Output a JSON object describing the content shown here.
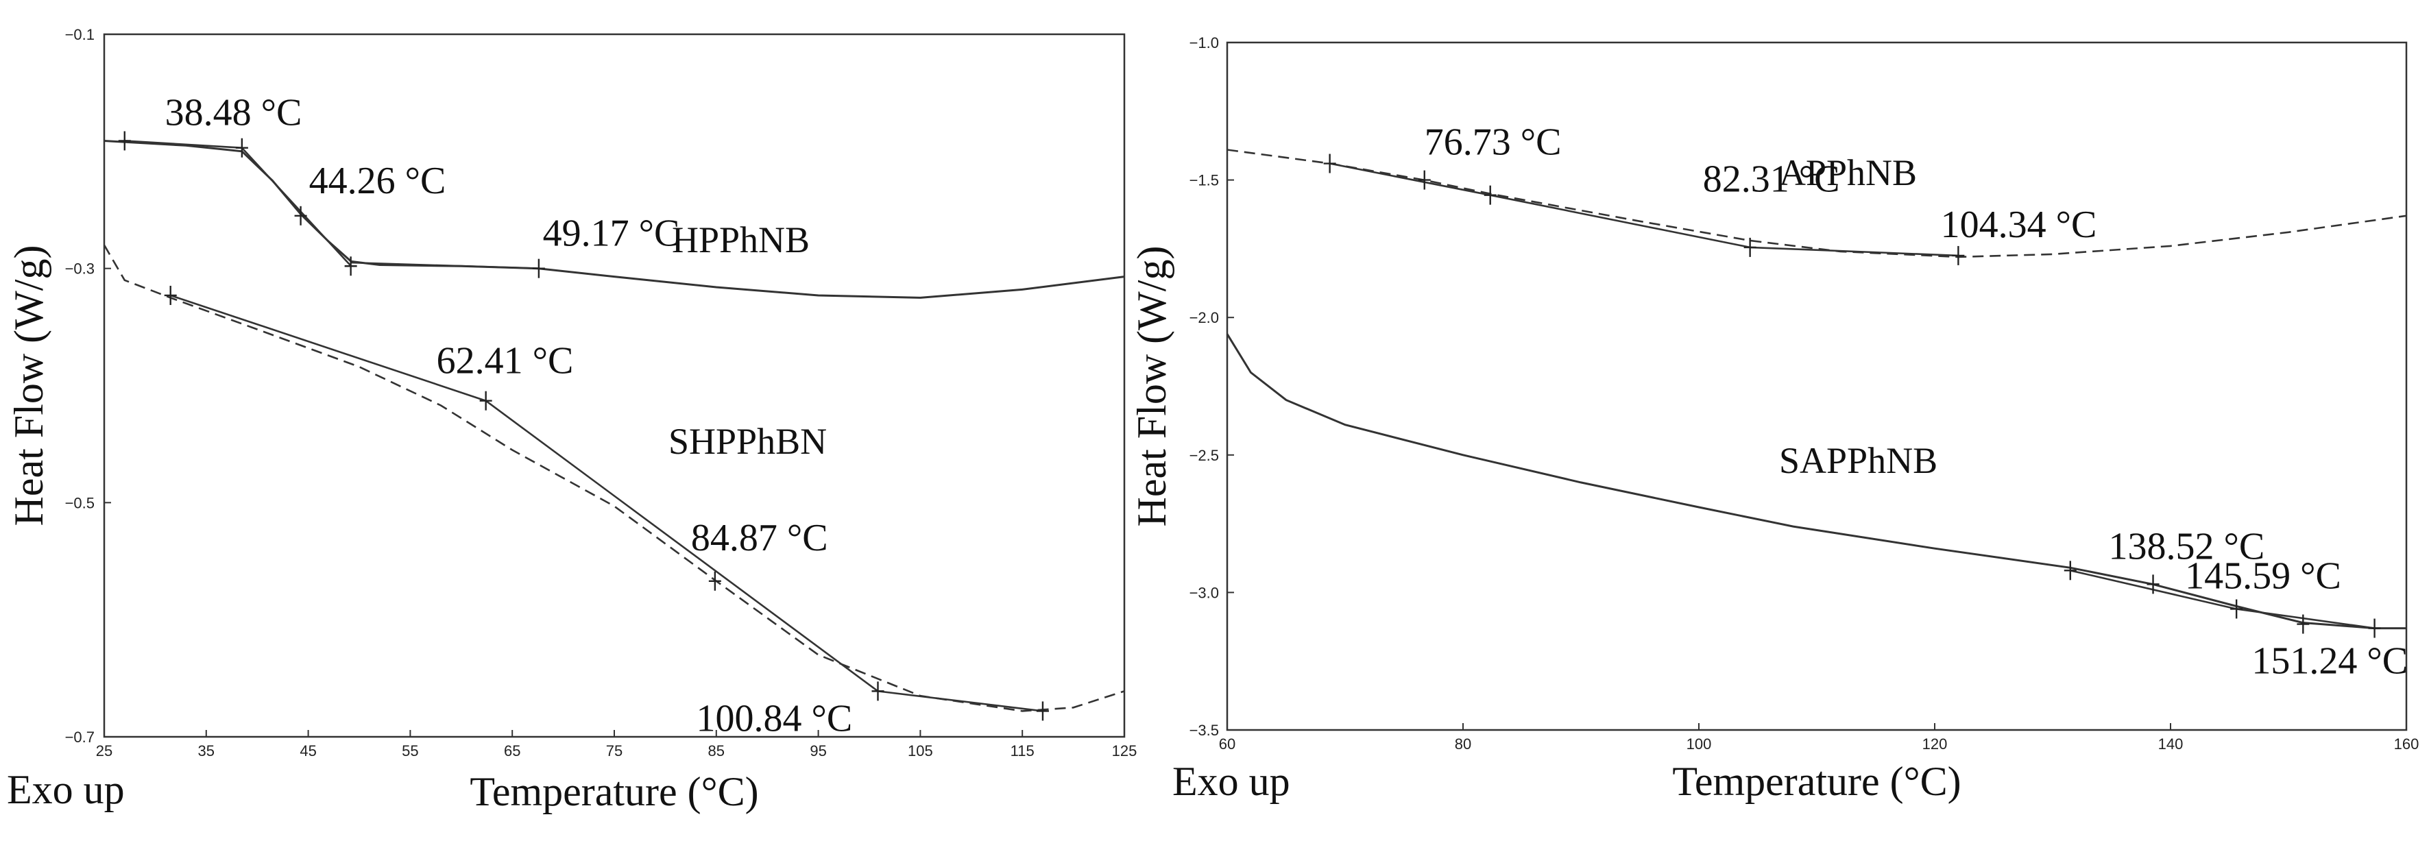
{
  "chart_data": [
    {
      "type": "line",
      "xlabel": "Temperature (°C)",
      "ylabel": "Heat Flow (W/g)",
      "corner_label": "Exo up",
      "xlim": [
        25,
        125
      ],
      "ylim": [
        -0.7,
        -0.1
      ],
      "x_ticks": [
        25,
        35,
        45,
        55,
        65,
        75,
        85,
        95,
        105,
        115,
        125
      ],
      "x_tick_labels": [
        "25",
        "35",
        "45",
        "55",
        "65",
        "75",
        "85",
        "95",
        "105",
        "115",
        "125"
      ],
      "y_ticks": [
        -0.1,
        -0.3,
        -0.5,
        -0.7
      ],
      "y_tick_labels": [
        "−0.1",
        "−0.3",
        "−0.5",
        "−0.7"
      ],
      "series": [
        {
          "name": "HPPhNB",
          "style": "solid",
          "points": [
            [
              25,
              -0.191
            ],
            [
              33,
              -0.195
            ],
            [
              38.5,
              -0.2
            ],
            [
              41.5,
              -0.225
            ],
            [
              44.3,
              -0.254
            ],
            [
              47,
              -0.277
            ],
            [
              49.2,
              -0.294
            ],
            [
              52,
              -0.297
            ],
            [
              60,
              -0.298
            ],
            [
              67.6,
              -0.3
            ],
            [
              75,
              -0.307
            ],
            [
              85,
              -0.316
            ],
            [
              95,
              -0.323
            ],
            [
              105,
              -0.325
            ],
            [
              115,
              -0.318
            ],
            [
              125,
              -0.307
            ]
          ],
          "tangents": [
            [
              [
                27,
                -0.191
              ],
              [
                38.5,
                -0.197
              ]
            ],
            [
              [
                38.5,
                -0.197
              ],
              [
                49.2,
                -0.298
              ]
            ],
            [
              [
                49.2,
                -0.295
              ],
              [
                67.6,
                -0.3
              ]
            ]
          ],
          "markers": [
            [
              27,
              -0.191
            ],
            [
              38.5,
              -0.197
            ],
            [
              44.26,
              -0.255
            ],
            [
              49.17,
              -0.298
            ],
            [
              67.6,
              -0.3
            ]
          ]
        },
        {
          "name": "SHPPhBN",
          "style": "dashed",
          "points": [
            [
              25,
              -0.28
            ],
            [
              27,
              -0.31
            ],
            [
              31.5,
              -0.325
            ],
            [
              40,
              -0.352
            ],
            [
              50,
              -0.384
            ],
            [
              58,
              -0.417
            ],
            [
              65,
              -0.455
            ],
            [
              75,
              -0.503
            ],
            [
              85,
              -0.567
            ],
            [
              95,
              -0.63
            ],
            [
              105,
              -0.665
            ],
            [
              115,
              -0.678
            ],
            [
              120,
              -0.675
            ],
            [
              125,
              -0.661
            ]
          ],
          "tangents": [
            [
              [
                31.5,
                -0.323
              ],
              [
                62.41,
                -0.413
              ]
            ],
            [
              [
                62.41,
                -0.413
              ],
              [
                100.84,
                -0.661
              ]
            ],
            [
              [
                100.84,
                -0.661
              ],
              [
                117,
                -0.678
              ]
            ]
          ],
          "markers": [
            [
              31.5,
              -0.323
            ],
            [
              62.41,
              -0.413
            ],
            [
              84.87,
              -0.567
            ],
            [
              100.84,
              -0.661
            ],
            [
              117,
              -0.678
            ]
          ]
        }
      ],
      "annotations": [
        {
          "text": "38.48 °C",
          "x": 38.48
        },
        {
          "text": "44.26 °C",
          "x": 44.26
        },
        {
          "text": "49.17 °C",
          "x": 49.17
        },
        {
          "text": "62.41 °C",
          "x": 62.41
        },
        {
          "text": "84.87 °C",
          "x": 84.87
        },
        {
          "text": "100.84 °C",
          "x": 100.84
        }
      ]
    },
    {
      "type": "line",
      "xlabel": "Temperature (°C)",
      "ylabel": "Heat Flow (W/g)",
      "corner_label": "Exo up",
      "xlim": [
        60,
        160
      ],
      "ylim": [
        -3.5,
        -1.0
      ],
      "x_ticks": [
        60,
        80,
        100,
        120,
        140,
        160
      ],
      "x_tick_labels": [
        "60",
        "80",
        "100",
        "120",
        "140",
        "160"
      ],
      "y_ticks": [
        -1.0,
        -1.5,
        -2.0,
        -2.5,
        -3.0,
        -3.5
      ],
      "y_tick_labels": [
        "−1.0",
        "−1.5",
        "−2.0",
        "−2.5",
        "−3.0",
        "−3.5"
      ],
      "series": [
        {
          "name": "APPhNB",
          "style": "dashed",
          "points": [
            [
              60,
              -1.39
            ],
            [
              68.7,
              -1.44
            ],
            [
              76.7,
              -1.5
            ],
            [
              82.3,
              -1.55
            ],
            [
              95,
              -1.65
            ],
            [
              104.3,
              -1.72
            ],
            [
              112,
              -1.76
            ],
            [
              122,
              -1.78
            ],
            [
              130,
              -1.77
            ],
            [
              140,
              -1.74
            ],
            [
              150,
              -1.69
            ],
            [
              160,
              -1.63
            ]
          ],
          "tangents": [
            [
              [
                68.7,
                -1.44
              ],
              [
                82.3,
                -1.555
              ]
            ],
            [
              [
                82.3,
                -1.555
              ],
              [
                104.34,
                -1.745
              ]
            ],
            [
              [
                104.34,
                -1.745
              ],
              [
                122,
                -1.775
              ]
            ]
          ],
          "markers": [
            [
              68.7,
              -1.44
            ],
            [
              76.73,
              -1.5
            ],
            [
              82.31,
              -1.555
            ],
            [
              104.34,
              -1.745
            ],
            [
              122,
              -1.775
            ]
          ]
        },
        {
          "name": "SAPPhNB",
          "style": "solid",
          "points": [
            [
              60,
              -2.06
            ],
            [
              62,
              -2.2
            ],
            [
              65,
              -2.3
            ],
            [
              70,
              -2.39
            ],
            [
              80,
              -2.5
            ],
            [
              90,
              -2.6
            ],
            [
              100,
              -2.69
            ],
            [
              108,
              -2.76
            ],
            [
              111,
              -2.78
            ],
            [
              120,
              -2.84
            ],
            [
              131.5,
              -2.91
            ],
            [
              138.5,
              -2.97
            ],
            [
              145.6,
              -3.05
            ],
            [
              151.2,
              -3.11
            ],
            [
              157.3,
              -3.13
            ],
            [
              160,
              -3.13
            ]
          ],
          "tangents": [
            [
              [
                131.5,
                -2.92
              ],
              [
                145.59,
                -3.06
              ]
            ],
            [
              [
                145.59,
                -3.06
              ],
              [
                157.3,
                -3.13
              ]
            ]
          ],
          "markers": [
            [
              131.5,
              -2.92
            ],
            [
              138.52,
              -2.97
            ],
            [
              145.59,
              -3.06
            ],
            [
              151.24,
              -3.115
            ],
            [
              157.3,
              -3.13
            ]
          ]
        }
      ],
      "annotations": [
        {
          "text": "76.73 °C",
          "x": 76.73
        },
        {
          "text": "82.31 °C",
          "x": 82.31
        },
        {
          "text": "104.34 °C",
          "x": 104.34
        },
        {
          "text": "138.52 °C",
          "x": 138.52
        },
        {
          "text": "145.59 °C",
          "x": 145.59
        },
        {
          "text": "151.24 °C",
          "x": 151.24
        }
      ]
    }
  ]
}
